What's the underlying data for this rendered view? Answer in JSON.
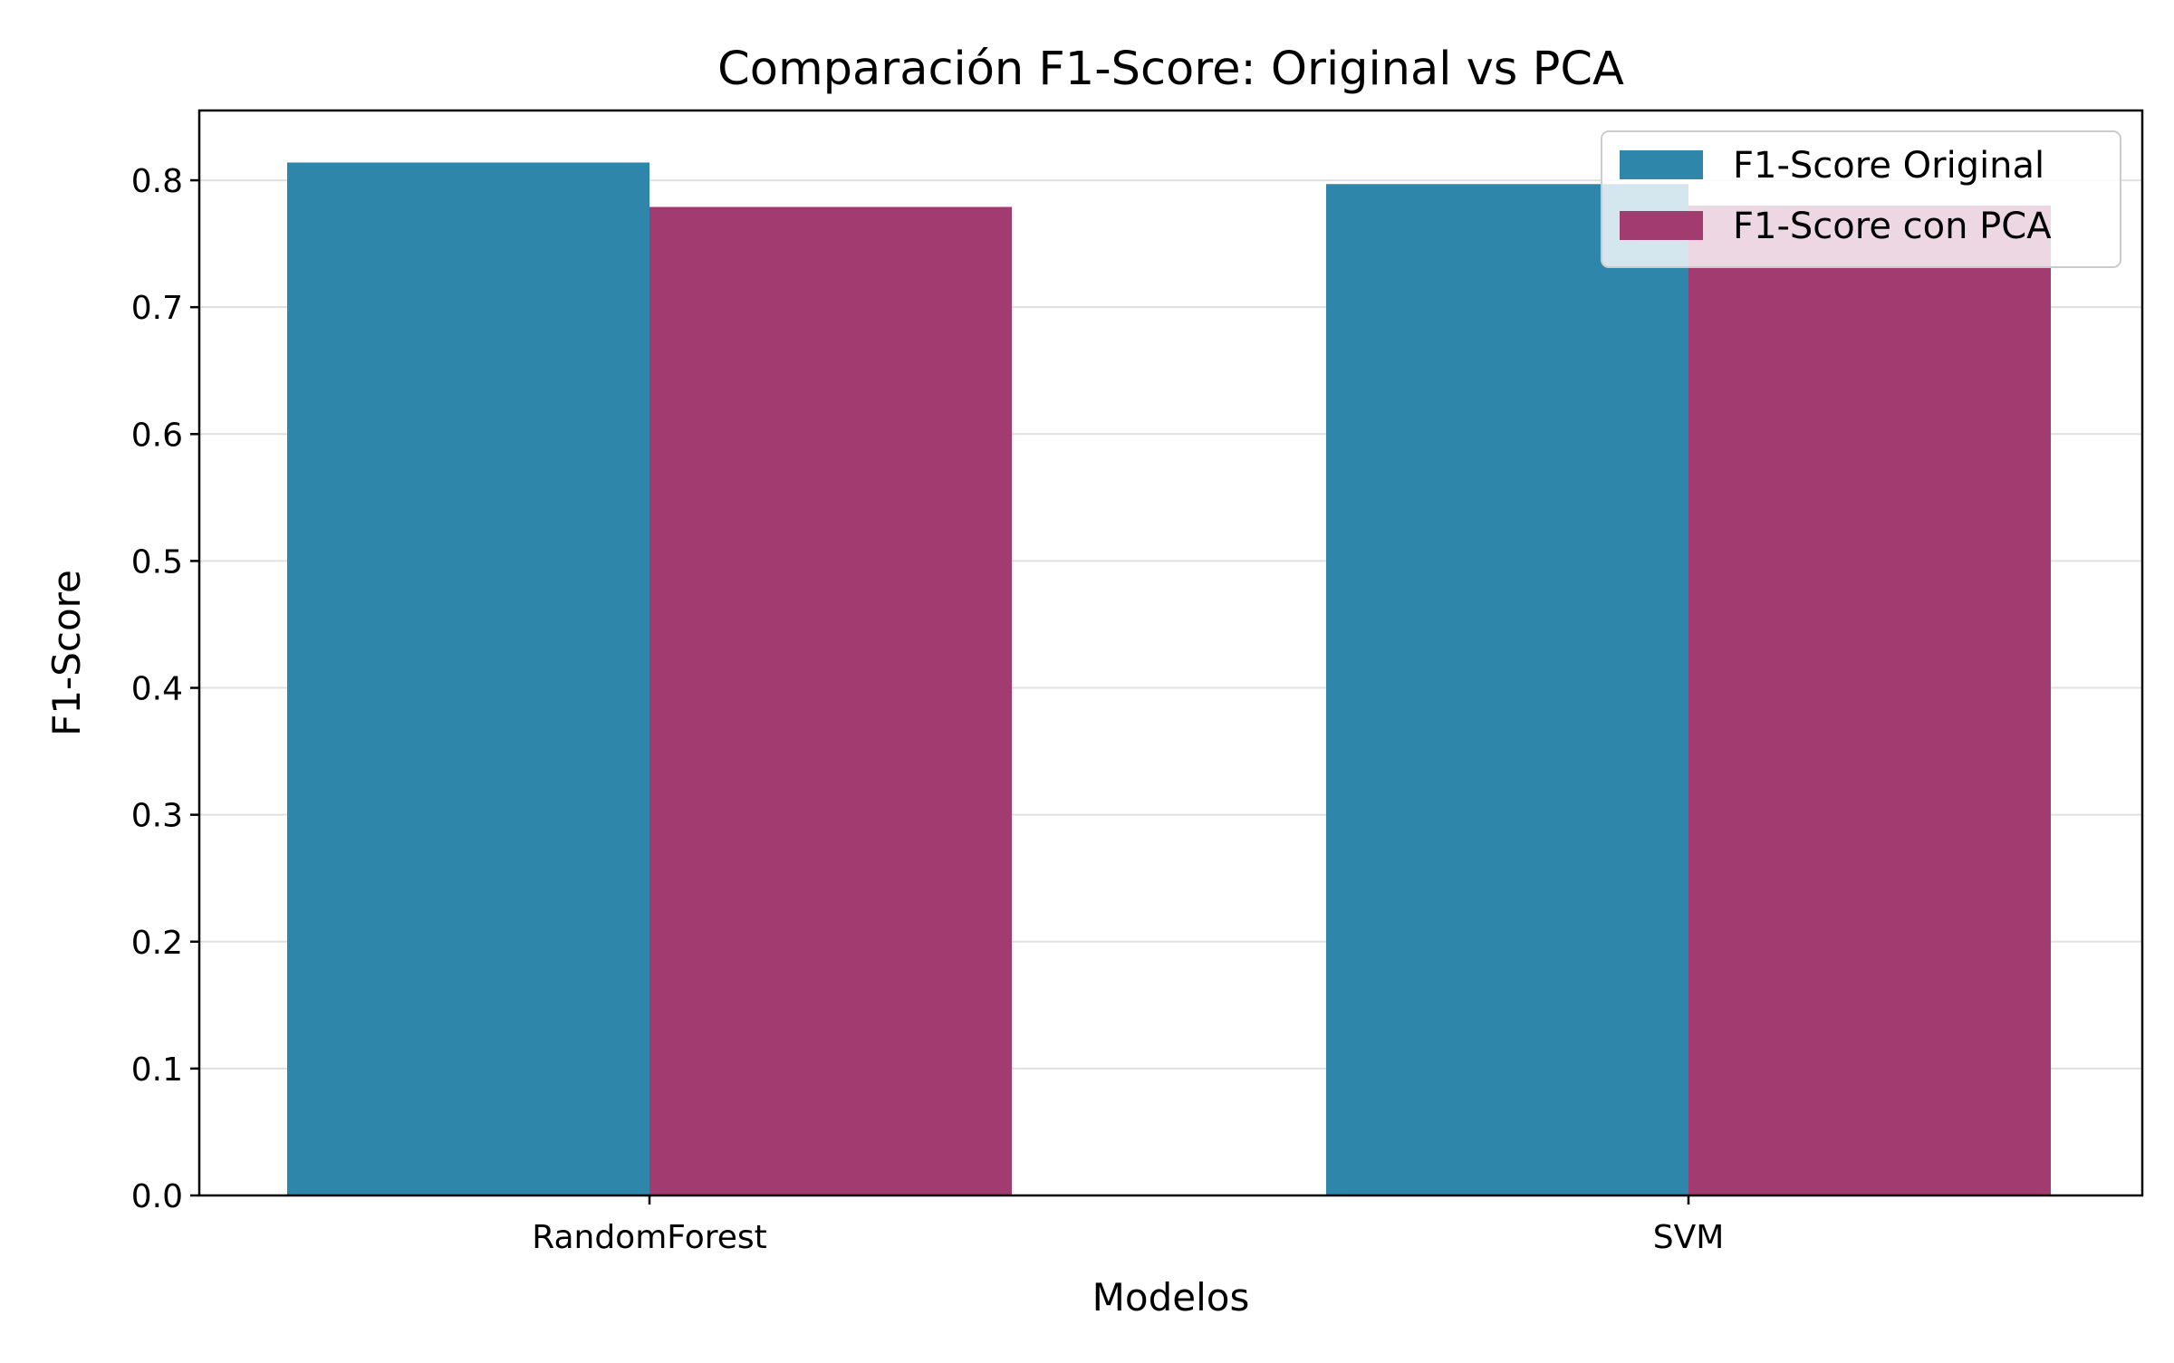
{
  "chart_data": {
    "type": "bar",
    "title": "Comparación F1-Score: Original vs PCA",
    "xlabel": "Modelos",
    "ylabel": "F1-Score",
    "categories": [
      "RandomForest",
      "SVM"
    ],
    "series": [
      {
        "name": "F1-Score Original",
        "values": [
          0.814,
          0.797
        ],
        "color": "#2e86ab"
      },
      {
        "name": "F1-Score con PCA",
        "values": [
          0.779,
          0.78
        ],
        "color": "#a23b6f"
      }
    ],
    "ylim": [
      0,
      0.855
    ],
    "yticks": [
      {
        "value": 0.0,
        "label": "0.0"
      },
      {
        "value": 0.1,
        "label": "0.1"
      },
      {
        "value": 0.2,
        "label": "0.2"
      },
      {
        "value": 0.3,
        "label": "0.3"
      },
      {
        "value": 0.4,
        "label": "0.4"
      },
      {
        "value": 0.5,
        "label": "0.5"
      },
      {
        "value": 0.6,
        "label": "0.6"
      },
      {
        "value": 0.7,
        "label": "0.7"
      },
      {
        "value": 0.8,
        "label": "0.8"
      }
    ],
    "grid": "y-axis only",
    "legend_position": "top-right"
  }
}
